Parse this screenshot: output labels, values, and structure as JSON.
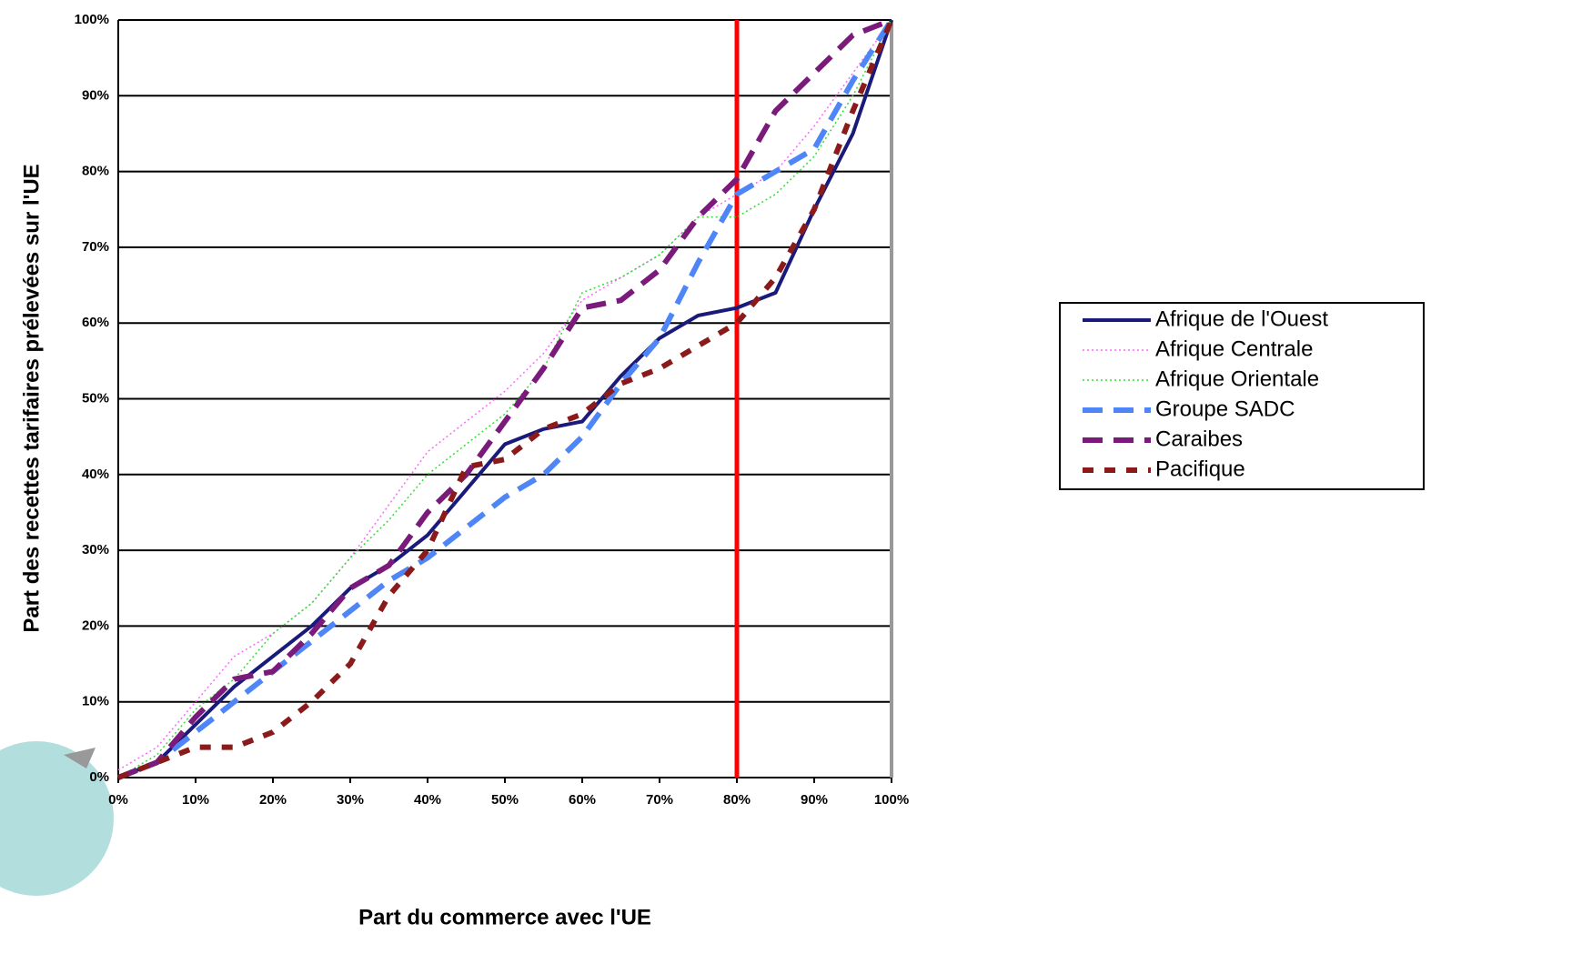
{
  "chart_data": {
    "type": "line",
    "x_label": "Part du commerce avec l'UE",
    "y_label": "Part des recettes tarifaires prélevées sur l'UE",
    "x": [
      0,
      5,
      10,
      15,
      20,
      25,
      30,
      35,
      40,
      45,
      50,
      55,
      60,
      65,
      70,
      75,
      80,
      85,
      90,
      95,
      100
    ],
    "series": [
      {
        "name": "Afrique de l'Ouest",
        "color": "#1a1a7a",
        "dash": "solid",
        "values": [
          0,
          2,
          7,
          12,
          16,
          20,
          25,
          28,
          32,
          38,
          44,
          46,
          47,
          53,
          58,
          61,
          62,
          64,
          75,
          85,
          100
        ]
      },
      {
        "name": "Afrique Centrale",
        "color": "#ff66ff",
        "dash": "dotted",
        "values": [
          1,
          4,
          10,
          16,
          19,
          23,
          29,
          36,
          43,
          47,
          51,
          56,
          63,
          66,
          69,
          74,
          77,
          80,
          86,
          93,
          100
        ]
      },
      {
        "name": "Afrique Orientale",
        "color": "#33dd33",
        "dash": "dotted",
        "values": [
          0,
          3,
          9,
          13,
          19,
          23,
          29,
          34,
          40,
          44,
          48,
          54,
          64,
          66,
          69,
          74,
          74,
          77,
          82,
          90,
          100
        ]
      },
      {
        "name": "Groupe SADC",
        "color": "#4f86f7",
        "dash": "long",
        "values": [
          0,
          2,
          6,
          10,
          14,
          18,
          22,
          26,
          29,
          33,
          37,
          40,
          45,
          52,
          58,
          68,
          77,
          80,
          83,
          92,
          100
        ]
      },
      {
        "name": "Caraibes",
        "color": "#7a1a7a",
        "dash": "long",
        "values": [
          0,
          2,
          8,
          13,
          14,
          19,
          25,
          28,
          35,
          40,
          47,
          54,
          62,
          63,
          67,
          74,
          79,
          88,
          93,
          98,
          100
        ]
      },
      {
        "name": "Pacifique",
        "color": "#8b1a1a",
        "dash": "short",
        "values": [
          0,
          2,
          4,
          4,
          6,
          10,
          15,
          24,
          30,
          41,
          42,
          46,
          48,
          52,
          54,
          57,
          60,
          66,
          75,
          88,
          100
        ]
      }
    ],
    "xlim": [
      0,
      100
    ],
    "xticks": [
      {
        "value": 0,
        "label": "0%"
      },
      {
        "value": 10,
        "label": "10%"
      },
      {
        "value": 20,
        "label": "20%"
      },
      {
        "value": 30,
        "label": "30%"
      },
      {
        "value": 40,
        "label": "40%"
      },
      {
        "value": 50,
        "label": "50%"
      },
      {
        "value": 60,
        "label": "60%"
      },
      {
        "value": 70,
        "label": "70%"
      },
      {
        "value": 80,
        "label": "80%"
      },
      {
        "value": 90,
        "label": "90%"
      },
      {
        "value": 100,
        "label": "100%"
      }
    ],
    "ylim": [
      0,
      100
    ],
    "yticks": [
      {
        "value": 0,
        "label": "0%"
      },
      {
        "value": 10,
        "label": "10%"
      },
      {
        "value": 20,
        "label": "20%"
      },
      {
        "value": 30,
        "label": "30%"
      },
      {
        "value": 40,
        "label": "40%"
      },
      {
        "value": 50,
        "label": "50%"
      },
      {
        "value": 60,
        "label": "60%"
      },
      {
        "value": 70,
        "label": "70%"
      },
      {
        "value": 80,
        "label": "80%"
      },
      {
        "value": 90,
        "label": "90%"
      },
      {
        "value": 100,
        "label": "100%"
      }
    ],
    "grid": true,
    "vline": {
      "x": 80,
      "color": "#ff0000"
    },
    "legend": "right"
  }
}
